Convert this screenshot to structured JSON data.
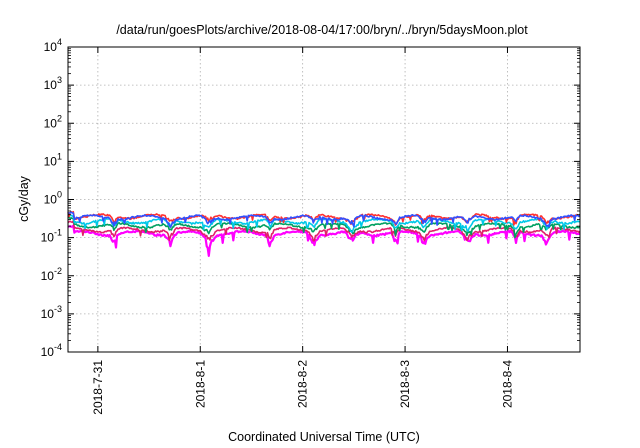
{
  "chart_data": {
    "type": "line",
    "title": "/data/run/goesPlots/archive/2018-08-04/17:00/bryn/../bryn/5daysMoon.plot",
    "xlabel": "Coordinated Universal Time (UTC)",
    "ylabel": "cGy/day",
    "y_scale": "log",
    "ylim": [
      0.0001,
      10000
    ],
    "y_ticks": [
      {
        "base": "10",
        "exp": "-4",
        "value": 0.0001
      },
      {
        "base": "10",
        "exp": "-3",
        "value": 0.001
      },
      {
        "base": "10",
        "exp": "-2",
        "value": 0.01
      },
      {
        "base": "10",
        "exp": "-1",
        "value": 0.1
      },
      {
        "base": "10",
        "exp": "0",
        "value": 1
      },
      {
        "base": "10",
        "exp": "1",
        "value": 10
      },
      {
        "base": "10",
        "exp": "2",
        "value": 100
      },
      {
        "base": "10",
        "exp": "3",
        "value": 1000
      },
      {
        "base": "10",
        "exp": "4",
        "value": 10000
      }
    ],
    "xlim": [
      "2018-07-30T17:00",
      "2018-08-04T17:00"
    ],
    "x_ticks": [
      "2018-7-31",
      "2018-8-1",
      "2018-8-2",
      "2018-8-3",
      "2018-8-4"
    ],
    "x_tick_values": [
      "2018-07-31T00:00",
      "2018-08-01T00:00",
      "2018-08-02T00:00",
      "2018-08-03T00:00",
      "2018-08-04T00:00"
    ],
    "grid": true,
    "series": [
      {
        "color": "#ff00ff",
        "level": 0.13,
        "dip_depth": 0.45
      },
      {
        "color": "#e0206a",
        "level": 0.16,
        "dip_depth": 0.35
      },
      {
        "color": "#00a060",
        "level": 0.21,
        "dip_depth": 0.3
      },
      {
        "color": "#00c8e8",
        "level": 0.27,
        "dip_depth": 0.35
      },
      {
        "color": "#ff3030",
        "level": 0.36,
        "dip_depth": 0.3
      },
      {
        "color": "#3050ff",
        "level": 0.34,
        "dip_depth": 0.32
      }
    ]
  }
}
